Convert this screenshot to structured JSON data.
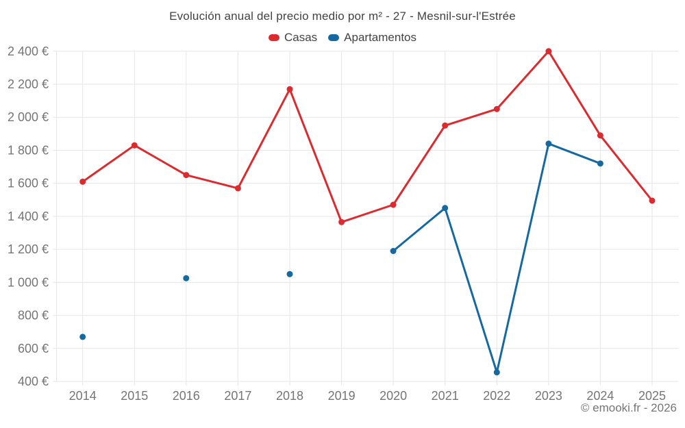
{
  "title": "Evolución anual del precio medio por m² - 27 - Mesnil-sur-l'Estrée",
  "attribution": "© emooki.fr - 2026",
  "colors": {
    "casas": "#dc2a2e",
    "apartamentos": "#1569a0",
    "grid": "#e6e6e6",
    "axis_text": "#757575",
    "title_text": "#424242"
  },
  "chart_data": {
    "type": "line",
    "title": "Evolución anual del precio medio por m² - 27 - Mesnil-sur-l'Estrée",
    "x": [
      2014,
      2015,
      2016,
      2017,
      2018,
      2019,
      2020,
      2021,
      2022,
      2023,
      2024,
      2025
    ],
    "series": [
      {
        "name": "Casas",
        "color": "#dc2a2e",
        "values": [
          1610,
          1830,
          1650,
          1570,
          2170,
          1365,
          1470,
          1950,
          2050,
          2400,
          1890,
          1495
        ]
      },
      {
        "name": "Apartamentos",
        "color": "#1569a0",
        "values": [
          670,
          null,
          1025,
          null,
          1050,
          null,
          1190,
          1450,
          455,
          1840,
          1720,
          null
        ]
      }
    ],
    "xlabel": "",
    "ylabel": "",
    "ylim": [
      400,
      2400
    ],
    "ytick_step": 200,
    "ytick_suffix": " €",
    "grid": true,
    "legend_position": "top"
  }
}
